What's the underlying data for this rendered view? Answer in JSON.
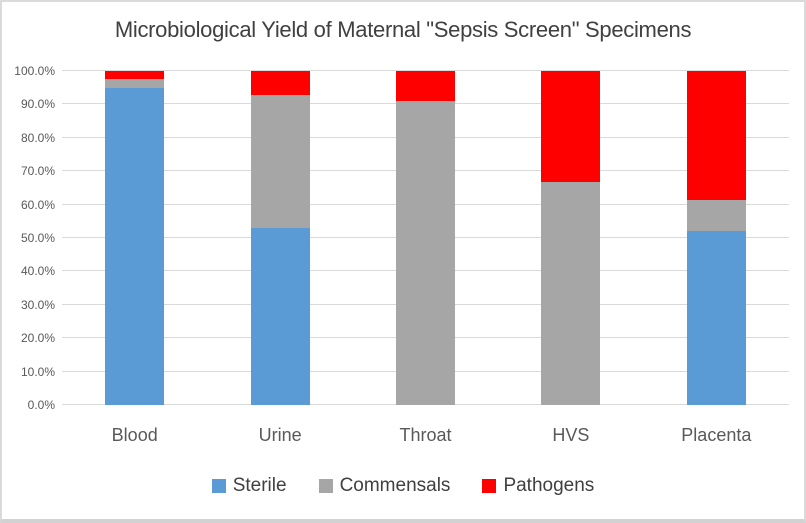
{
  "chart_data": {
    "type": "bar",
    "stacked": true,
    "title": "Microbiological Yield of Maternal \"Sepsis Screen\" Specimens",
    "categories": [
      "Blood",
      "Urine",
      "Throat",
      "HVS",
      "Placenta"
    ],
    "series": [
      {
        "name": "Sterile",
        "color": "#5B9BD5",
        "values": [
          95.0,
          53.0,
          0.0,
          0.0,
          52.0
        ]
      },
      {
        "name": "Commensals",
        "color": "#A6A6A6",
        "values": [
          2.5,
          39.7,
          91.0,
          66.7,
          9.5
        ]
      },
      {
        "name": "Pathogens",
        "color": "#FF0000",
        "values": [
          2.5,
          7.3,
          9.0,
          33.3,
          38.5
        ]
      }
    ],
    "ylabel": "",
    "xlabel": "",
    "ylim": [
      0,
      100
    ],
    "ytick_step": 10,
    "ytick_labels": [
      "0.0%",
      "10.0%",
      "20.0%",
      "30.0%",
      "40.0%",
      "50.0%",
      "60.0%",
      "70.0%",
      "80.0%",
      "90.0%",
      "100.0%"
    ],
    "grid": true,
    "legend_position": "bottom",
    "legend_labels": [
      "Sterile",
      "Commensals",
      "Pathogens"
    ]
  }
}
